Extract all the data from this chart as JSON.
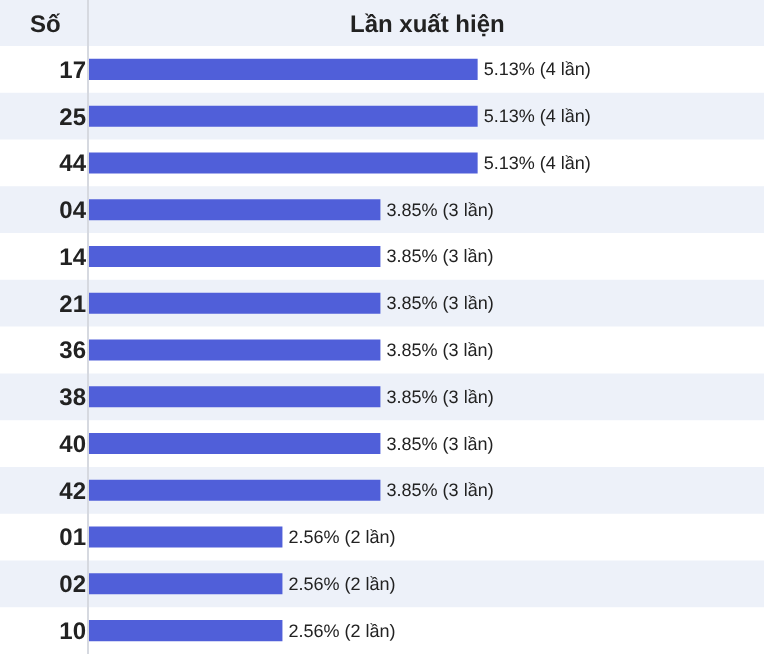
{
  "chart_data": {
    "type": "bar",
    "orientation": "horizontal",
    "xlabel": "Lần xuất hiện",
    "ylabel": "Số",
    "categories": [
      "17",
      "25",
      "44",
      "04",
      "14",
      "21",
      "36",
      "38",
      "40",
      "42",
      "01",
      "02",
      "10"
    ],
    "values": [
      5.13,
      5.13,
      5.13,
      3.85,
      3.85,
      3.85,
      3.85,
      3.85,
      3.85,
      3.85,
      2.56,
      2.56,
      2.56
    ],
    "value_labels": [
      "5.13% (4 lần)",
      "5.13% (4 lần)",
      "5.13% (4 lần)",
      "3.85% (3 lần)",
      "3.85% (3 lần)",
      "3.85% (3 lần)",
      "3.85% (3 lần)",
      "3.85% (3 lần)",
      "3.85% (3 lần)",
      "3.85% (3 lần)",
      "2.56% (2 lần)",
      "2.56% (2 lần)",
      "2.56% (2 lần)"
    ],
    "color": "#505fd9",
    "xlim": [
      0,
      8.9
    ],
    "tick_labels": "y",
    "legend": false
  }
}
